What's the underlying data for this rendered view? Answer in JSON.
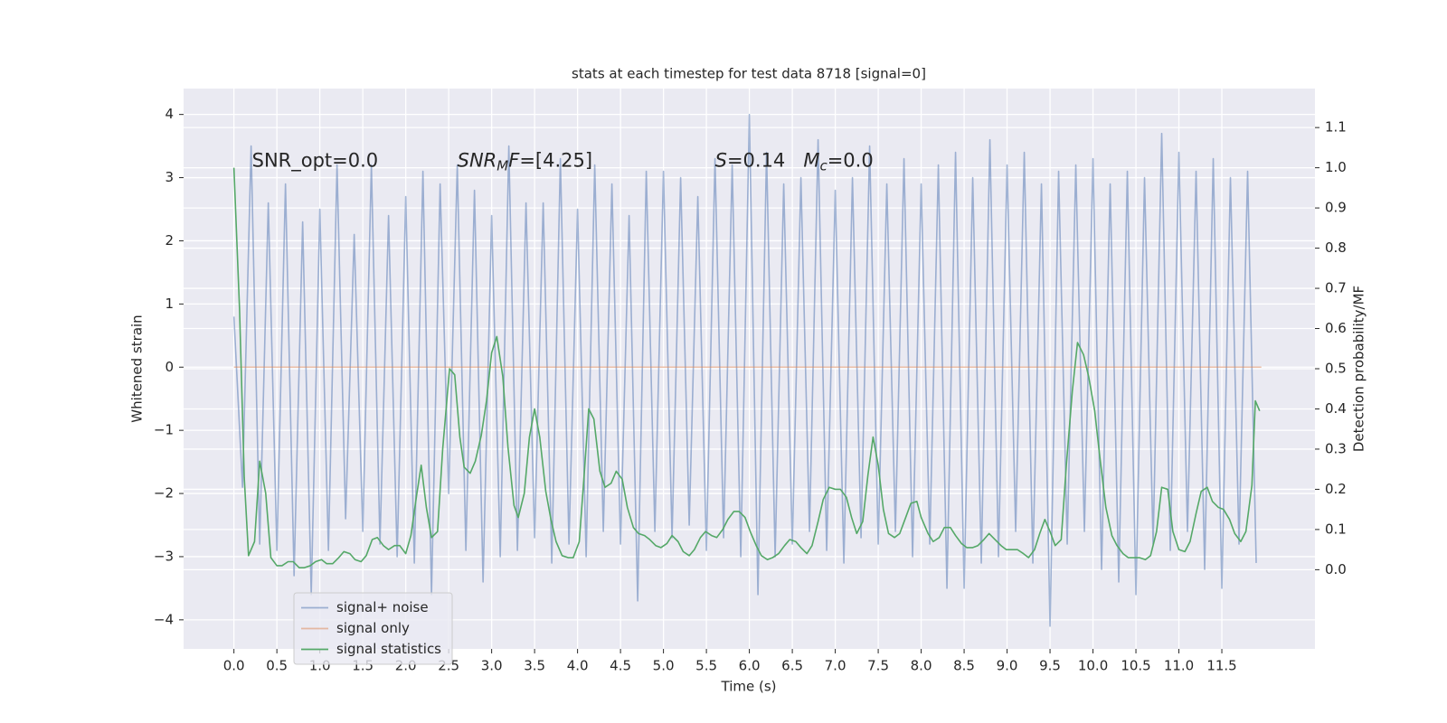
{
  "chart_data": {
    "type": "line",
    "title": "stats at each timestep for test data 8718 [signal=0]",
    "xlabel": "Time (s)",
    "ylabel": "Whitened strain",
    "y2label": "Detection probability/MF",
    "xlim": [
      -0.586,
      12.584
    ],
    "ylim": [
      -4.46,
      4.41
    ],
    "y2lim": [
      -0.197,
      1.197
    ],
    "xticks": [
      {
        "value": 0,
        "label": "0.0"
      },
      {
        "value": 0.5,
        "label": "0.5"
      },
      {
        "value": 1,
        "label": "1.0"
      },
      {
        "value": 1.5,
        "label": "1.5"
      },
      {
        "value": 2,
        "label": "2.0"
      },
      {
        "value": 2.5,
        "label": "2.5"
      },
      {
        "value": 3,
        "label": "3.0"
      },
      {
        "value": 3.5,
        "label": "3.5"
      },
      {
        "value": 4,
        "label": "4.0"
      },
      {
        "value": 4.5,
        "label": "4.5"
      },
      {
        "value": 5,
        "label": "5.0"
      },
      {
        "value": 5.5,
        "label": "5.5"
      },
      {
        "value": 6,
        "label": "6.0"
      },
      {
        "value": 6.5,
        "label": "6.5"
      },
      {
        "value": 7,
        "label": "7.0"
      },
      {
        "value": 7.5,
        "label": "7.5"
      },
      {
        "value": 8,
        "label": "8.0"
      },
      {
        "value": 8.5,
        "label": "8.5"
      },
      {
        "value": 9,
        "label": "9.0"
      },
      {
        "value": 9.5,
        "label": "9.5"
      },
      {
        "value": 10,
        "label": "10.0"
      },
      {
        "value": 10.5,
        "label": "10.5"
      },
      {
        "value": 11,
        "label": "11.0"
      },
      {
        "value": 11.5,
        "label": "11.5"
      }
    ],
    "yticks": [
      {
        "value": -4,
        "label": "−4"
      },
      {
        "value": -3,
        "label": "−3"
      },
      {
        "value": -2,
        "label": "−2"
      },
      {
        "value": -1,
        "label": "−1"
      },
      0,
      1,
      2,
      3,
      4
    ],
    "y2ticks": [
      {
        "value": 0,
        "label": "0.0"
      },
      0.1,
      0.2,
      0.3,
      0.4,
      0.5,
      0.6,
      0.7,
      0.8,
      0.9,
      {
        "value": 1,
        "label": "1.0"
      },
      1.1
    ],
    "grid": true,
    "legend": "lower left",
    "series": [
      {
        "name": "signal+ noise",
        "color": "#4c72b0",
        "opacity": 0.5,
        "x": [
          0,
          0.1,
          0.2,
          0.3,
          0.4,
          0.5,
          0.6,
          0.7,
          0.8,
          0.9,
          1,
          1.1,
          1.2,
          1.3,
          1.4,
          1.5,
          1.6,
          1.7,
          1.8,
          1.9,
          2,
          2.1,
          2.2,
          2.3,
          2.4,
          2.5,
          2.6,
          2.7,
          2.8,
          2.9,
          3,
          3.1,
          3.2,
          3.3,
          3.4,
          3.5,
          3.6,
          3.7,
          3.8,
          3.9,
          4,
          4.1,
          4.2,
          4.3,
          4.4,
          4.5,
          4.6,
          4.7,
          4.8,
          4.9,
          5,
          5.1,
          5.2,
          5.3,
          5.4,
          5.5,
          5.6,
          5.7,
          5.8,
          5.9,
          6,
          6.1,
          6.2,
          6.3,
          6.4,
          6.5,
          6.6,
          6.7,
          6.8,
          6.9,
          7,
          7.1,
          7.2,
          7.3,
          7.4,
          7.5,
          7.6,
          7.7,
          7.8,
          7.9,
          8,
          8.1,
          8.2,
          8.3,
          8.4,
          8.5,
          8.6,
          8.7,
          8.8,
          8.9,
          9,
          9.1,
          9.2,
          9.3,
          9.4,
          9.5,
          9.6,
          9.7,
          9.8,
          9.9,
          10,
          10.1,
          10.2,
          10.3,
          10.4,
          10.5,
          10.6,
          10.7,
          10.8,
          10.9,
          11,
          11.1,
          11.2,
          11.3,
          11.4,
          11.5,
          11.6,
          11.7,
          11.8,
          11.9
        ],
        "values": [
          0.8,
          -1.9,
          3.5,
          -2.8,
          2.6,
          -2.9,
          2.9,
          -3.3,
          2.3,
          -3.6,
          2.5,
          -2.9,
          3.2,
          -2.4,
          2.1,
          -2.6,
          3.2,
          -2.8,
          2.4,
          -3.0,
          2.7,
          -3.1,
          3.1,
          -3.6,
          2.9,
          -2.0,
          3.2,
          -2.9,
          2.8,
          -3.4,
          2.4,
          -3.0,
          3.5,
          -2.9,
          2.6,
          -2.7,
          2.6,
          -3.1,
          3.3,
          -2.8,
          2.5,
          -3.0,
          3.2,
          -2.6,
          2.9,
          -2.8,
          2.4,
          -3.7,
          3.1,
          -2.6,
          3.1,
          -2.7,
          3.0,
          -2.5,
          2.7,
          -2.9,
          3.3,
          -2.7,
          3.2,
          -3.0,
          4.0,
          -3.6,
          3.4,
          -3.0,
          2.9,
          -2.8,
          3.0,
          -2.6,
          3.6,
          -2.9,
          2.8,
          -3.1,
          3.0,
          -2.7,
          3.5,
          -2.8,
          2.9,
          -2.6,
          3.3,
          -3.0,
          2.9,
          -2.8,
          3.2,
          -3.5,
          3.4,
          -3.5,
          3.0,
          -3.1,
          3.6,
          -3.0,
          3.2,
          -2.6,
          3.4,
          -3.1,
          2.9,
          -4.1,
          3.1,
          -2.8,
          3.2,
          -2.6,
          3.3,
          -3.2,
          2.9,
          -3.4,
          3.1,
          -3.6,
          3.0,
          -2.8,
          3.7,
          -2.9,
          3.4,
          -2.6,
          3.1,
          -3.2,
          3.3,
          -3.5,
          3.0,
          -2.8,
          3.1,
          -3.1
        ]
      },
      {
        "name": "signal only",
        "color": "#dd8452",
        "opacity": 0.5,
        "x": [
          0,
          11.96
        ],
        "values": [
          0,
          0
        ]
      },
      {
        "name": "signal statistics",
        "color": "#55a868",
        "opacity": 1,
        "axis": "y2",
        "x": [
          0,
          0.065,
          0.12,
          0.17,
          0.24,
          0.3,
          0.37,
          0.43,
          0.5,
          0.56,
          0.63,
          0.69,
          0.76,
          0.82,
          0.89,
          0.95,
          1.02,
          1.08,
          1.15,
          1.22,
          1.28,
          1.35,
          1.41,
          1.48,
          1.54,
          1.61,
          1.67,
          1.74,
          1.8,
          1.87,
          1.93,
          2.0,
          2.06,
          2.13,
          2.18,
          2.24,
          2.3,
          2.37,
          2.43,
          2.51,
          2.57,
          2.63,
          2.68,
          2.75,
          2.81,
          2.88,
          2.94,
          3.0,
          3.06,
          3.13,
          3.19,
          3.26,
          3.31,
          3.38,
          3.44,
          3.5,
          3.56,
          3.63,
          3.69,
          3.75,
          3.82,
          3.89,
          3.95,
          4.02,
          4.08,
          4.13,
          4.19,
          4.26,
          4.32,
          4.39,
          4.45,
          4.52,
          4.58,
          4.65,
          4.71,
          4.78,
          4.84,
          4.91,
          4.97,
          5.04,
          5.1,
          5.17,
          5.23,
          5.3,
          5.36,
          5.43,
          5.49,
          5.56,
          5.62,
          5.69,
          5.75,
          5.82,
          5.88,
          5.95,
          6.01,
          6.08,
          6.14,
          6.21,
          6.27,
          6.34,
          6.41,
          6.47,
          6.54,
          6.6,
          6.67,
          6.73,
          6.8,
          6.86,
          6.93,
          7.0,
          7.06,
          7.13,
          7.19,
          7.25,
          7.32,
          7.38,
          7.44,
          7.5,
          7.56,
          7.62,
          7.69,
          7.75,
          7.82,
          7.88,
          7.95,
          8.0,
          8.08,
          8.14,
          8.21,
          8.27,
          8.34,
          8.4,
          8.47,
          8.53,
          8.6,
          8.66,
          8.73,
          8.79,
          8.86,
          8.93,
          8.99,
          9.06,
          9.12,
          9.19,
          9.25,
          9.32,
          9.38,
          9.44,
          9.5,
          9.56,
          9.63,
          9.69,
          9.76,
          9.82,
          9.89,
          9.95,
          10.02,
          10.08,
          10.15,
          10.22,
          10.28,
          10.35,
          10.41,
          10.48,
          10.54,
          10.61,
          10.67,
          10.74,
          10.8,
          10.87,
          10.93,
          11.0,
          11.07,
          11.13,
          11.2,
          11.26,
          11.33,
          11.39,
          11.46,
          11.52,
          11.59,
          11.65,
          11.72,
          11.78,
          11.85,
          11.89,
          11.94
        ],
        "values": [
          1.0,
          0.65,
          0.23,
          0.035,
          0.07,
          0.27,
          0.19,
          0.03,
          0.01,
          0.01,
          0.02,
          0.02,
          0.005,
          0.005,
          0.01,
          0.02,
          0.025,
          0.015,
          0.015,
          0.03,
          0.045,
          0.04,
          0.025,
          0.02,
          0.035,
          0.075,
          0.08,
          0.06,
          0.05,
          0.06,
          0.06,
          0.04,
          0.085,
          0.19,
          0.26,
          0.155,
          0.08,
          0.095,
          0.3,
          0.5,
          0.485,
          0.33,
          0.255,
          0.24,
          0.27,
          0.335,
          0.42,
          0.54,
          0.58,
          0.48,
          0.305,
          0.16,
          0.13,
          0.19,
          0.33,
          0.4,
          0.33,
          0.195,
          0.125,
          0.07,
          0.035,
          0.03,
          0.03,
          0.07,
          0.245,
          0.4,
          0.375,
          0.245,
          0.205,
          0.215,
          0.245,
          0.225,
          0.155,
          0.105,
          0.09,
          0.085,
          0.075,
          0.06,
          0.055,
          0.065,
          0.085,
          0.07,
          0.045,
          0.035,
          0.05,
          0.08,
          0.095,
          0.085,
          0.08,
          0.1,
          0.125,
          0.145,
          0.145,
          0.13,
          0.095,
          0.06,
          0.035,
          0.025,
          0.03,
          0.04,
          0.06,
          0.075,
          0.07,
          0.055,
          0.04,
          0.06,
          0.12,
          0.175,
          0.205,
          0.2,
          0.2,
          0.18,
          0.13,
          0.09,
          0.12,
          0.235,
          0.33,
          0.26,
          0.15,
          0.09,
          0.08,
          0.09,
          0.13,
          0.165,
          0.17,
          0.13,
          0.09,
          0.07,
          0.08,
          0.105,
          0.105,
          0.085,
          0.065,
          0.055,
          0.055,
          0.06,
          0.075,
          0.09,
          0.075,
          0.06,
          0.05,
          0.05,
          0.05,
          0.04,
          0.03,
          0.05,
          0.09,
          0.125,
          0.095,
          0.06,
          0.075,
          0.26,
          0.445,
          0.565,
          0.535,
          0.48,
          0.395,
          0.28,
          0.155,
          0.085,
          0.06,
          0.04,
          0.03,
          0.03,
          0.03,
          0.025,
          0.035,
          0.095,
          0.205,
          0.2,
          0.095,
          0.05,
          0.045,
          0.07,
          0.14,
          0.195,
          0.205,
          0.17,
          0.155,
          0.15,
          0.125,
          0.09,
          0.07,
          0.095,
          0.21,
          0.42,
          0.395
        ]
      }
    ],
    "annotations": [
      [
        {
          "text": "SNR_opt=0.0"
        }
      ],
      [
        {
          "text": "SNR",
          "italic": true
        },
        {
          "text": "M",
          "italic": true,
          "sub": true
        },
        {
          "text": "F",
          "italic": true
        },
        {
          "text": "=[4.25]"
        }
      ],
      [
        {
          "text": "S",
          "italic": true
        },
        {
          "text": "=0.14   "
        },
        {
          "text": "M",
          "italic": true
        },
        {
          "text": "c",
          "italic": true,
          "sub": true
        },
        {
          "text": "=0.0"
        }
      ]
    ]
  }
}
